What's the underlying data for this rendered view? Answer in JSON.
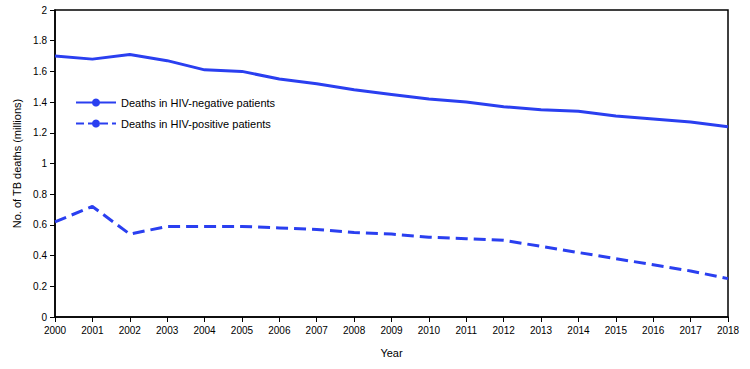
{
  "chart_data": {
    "type": "line",
    "x_label": "Year",
    "y_label": "No. of TB deaths (millions)",
    "categories": [
      "2000",
      "2001",
      "2002",
      "2003",
      "2004",
      "2005",
      "2006",
      "2007",
      "2008",
      "2009",
      "2010",
      "2011",
      "2012",
      "2013",
      "2014",
      "2015",
      "2016",
      "2017",
      "2018"
    ],
    "series": [
      {
        "name": "Deaths in HIV-negative patients",
        "color": "#2a3ff0",
        "line_style": "solid",
        "values": [
          1.7,
          1.68,
          1.71,
          1.67,
          1.61,
          1.6,
          1.55,
          1.52,
          1.48,
          1.45,
          1.42,
          1.4,
          1.37,
          1.35,
          1.34,
          1.31,
          1.29,
          1.27,
          1.24
        ]
      },
      {
        "name": "Deaths in HIV-positive patients",
        "color": "#2a3ff0",
        "line_style": "dashed",
        "values": [
          0.62,
          0.72,
          0.54,
          0.59,
          0.59,
          0.59,
          0.58,
          0.57,
          0.55,
          0.54,
          0.52,
          0.51,
          0.5,
          0.46,
          0.42,
          0.38,
          0.34,
          0.3,
          0.25
        ]
      }
    ],
    "ylim": [
      0,
      2
    ],
    "yticks": [
      0,
      0.2,
      0.4,
      0.6,
      0.8,
      1,
      1.2,
      1.4,
      1.6,
      1.8,
      2
    ],
    "grid": false,
    "legend": "left"
  }
}
